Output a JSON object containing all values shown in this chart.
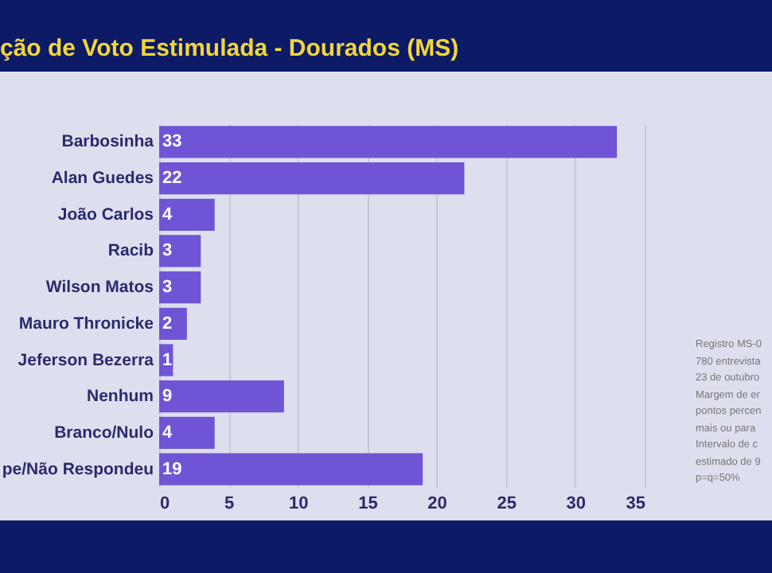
{
  "chart_data": {
    "type": "bar",
    "orientation": "horizontal",
    "title": "ção de Voto Estimulada - Dourados (MS)",
    "categories": [
      "Barbosinha",
      "Alan Guedes",
      "João Carlos",
      "Racib",
      "Wilson Matos",
      "Mauro Thronicke",
      "Jeferson Bezerra",
      "Nenhum",
      "Branco/Nulo",
      "pe/Não Respondeu"
    ],
    "values": [
      33,
      22,
      4,
      3,
      3,
      2,
      1,
      9,
      4,
      19
    ],
    "color": "#6f55d6",
    "xlim": [
      0,
      35
    ],
    "xticks": [
      0,
      5,
      10,
      15,
      20,
      25,
      30,
      35
    ],
    "grid": "x",
    "data_labels": true,
    "annotations": [
      "Registro MS-0",
      "780 entrevista",
      "23 de outubro",
      "Margem de er",
      "pontos percen",
      "mais ou para",
      "Intervalo de c",
      "estimado de 9",
      "p=q=50%"
    ]
  }
}
